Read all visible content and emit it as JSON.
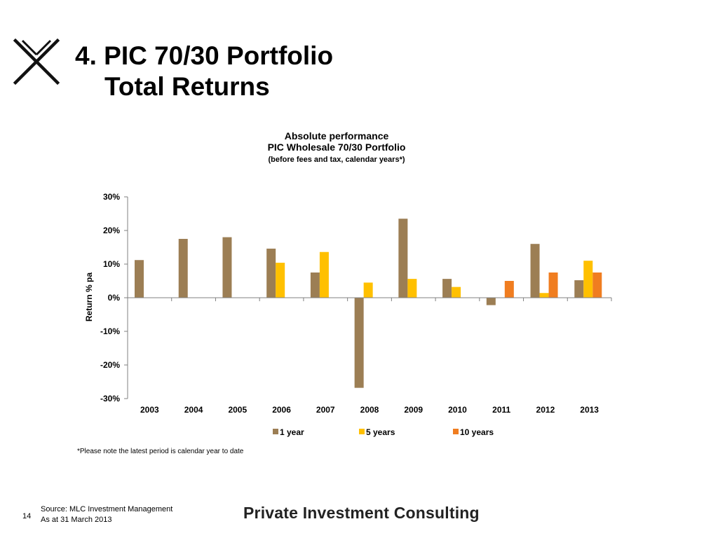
{
  "slide": {
    "title_line1": "4. PIC 70/30 Portfolio",
    "title_line2": "Total Returns",
    "footnote": "*Please note the latest period is calendar year to date",
    "page_number": "14",
    "source_line1": "Source: MLC Investment Management",
    "source_line2": "As at 31 March 2013",
    "brand": "Private Investment Consulting"
  },
  "chart_data": {
    "type": "bar",
    "title": "Absolute performance",
    "subtitle": "PIC Wholesale 70/30 Portfolio",
    "subtitle2": "(before fees and tax, calendar years*)",
    "xlabel": "",
    "ylabel": "Return % pa",
    "ylim": [
      -30,
      30
    ],
    "yticks": [
      30,
      20,
      10,
      0,
      -10,
      -20,
      -30
    ],
    "ytick_suffix": "%",
    "grid": false,
    "legend_position": "bottom",
    "categories": [
      "2003",
      "2004",
      "2005",
      "2006",
      "2007",
      "2008",
      "2009",
      "2010",
      "2011",
      "2012",
      "2013"
    ],
    "series": [
      {
        "name": "1 year",
        "color": "#9c7e54",
        "values": [
          11.2,
          17.5,
          18.0,
          14.6,
          7.5,
          -26.8,
          23.5,
          5.6,
          -2.2,
          16.0,
          5.2
        ]
      },
      {
        "name": "5 years",
        "color": "#ffc000",
        "values": [
          null,
          null,
          null,
          10.4,
          13.6,
          4.5,
          5.6,
          3.2,
          null,
          1.4,
          11.0
        ]
      },
      {
        "name": "10 years",
        "color": "#f07d20",
        "values": [
          null,
          null,
          null,
          null,
          null,
          null,
          null,
          null,
          5.0,
          7.5,
          7.5
        ]
      }
    ]
  }
}
